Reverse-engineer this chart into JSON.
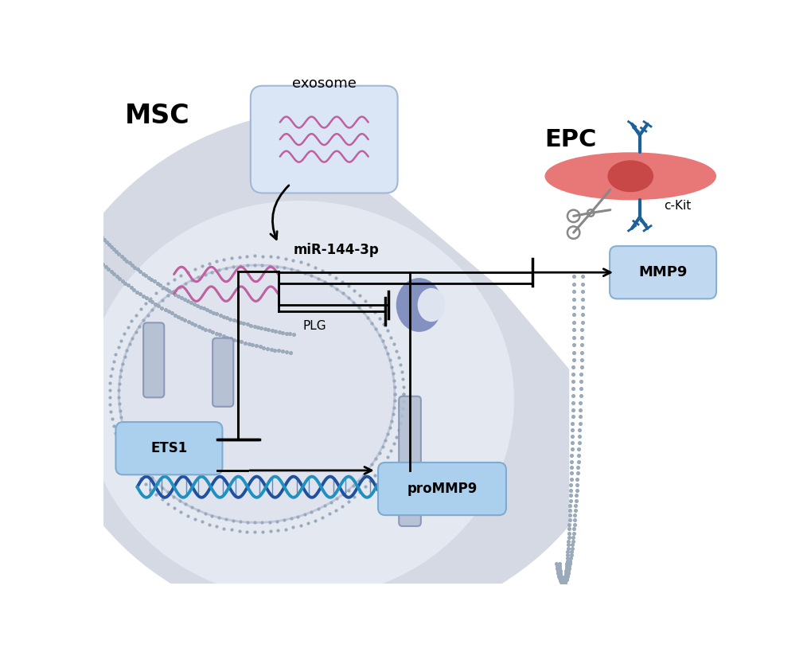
{
  "bg_color": "#ffffff",
  "msc_bg_color": "#d4d9e3",
  "inner_region_color": "#e2e6ee",
  "nucleus_color": "#c8cedc",
  "exosome_fill": "#dae6f5",
  "exosome_stroke": "#a0b8d8",
  "wavy_pink": "#c060a0",
  "label_msc": "MSC",
  "label_epc": "EPC",
  "label_exosome": "exosome",
  "label_mir": "miR-144-3p",
  "label_mmp9": "MMP9",
  "label_plg": "PLG",
  "label_ets1": "ETS1",
  "label_prommp9": "proMMP9",
  "label_ckit": "c-Kit",
  "membrane_color": "#9aaabb",
  "blue_box_fill": "#aad0ee",
  "blue_box_stroke": "#80aad0",
  "epc_cell_color": "#e88080",
  "epc_nucleus_color": "#c85050",
  "antibody_color": "#1e6098",
  "scissors_color": "#888888",
  "plg_fill": "#8090c0",
  "dna_color1": "#2050a0",
  "dna_color2": "#2090c0",
  "chan_color": "#b0bcd0",
  "chan_stroke": "#8090b0"
}
